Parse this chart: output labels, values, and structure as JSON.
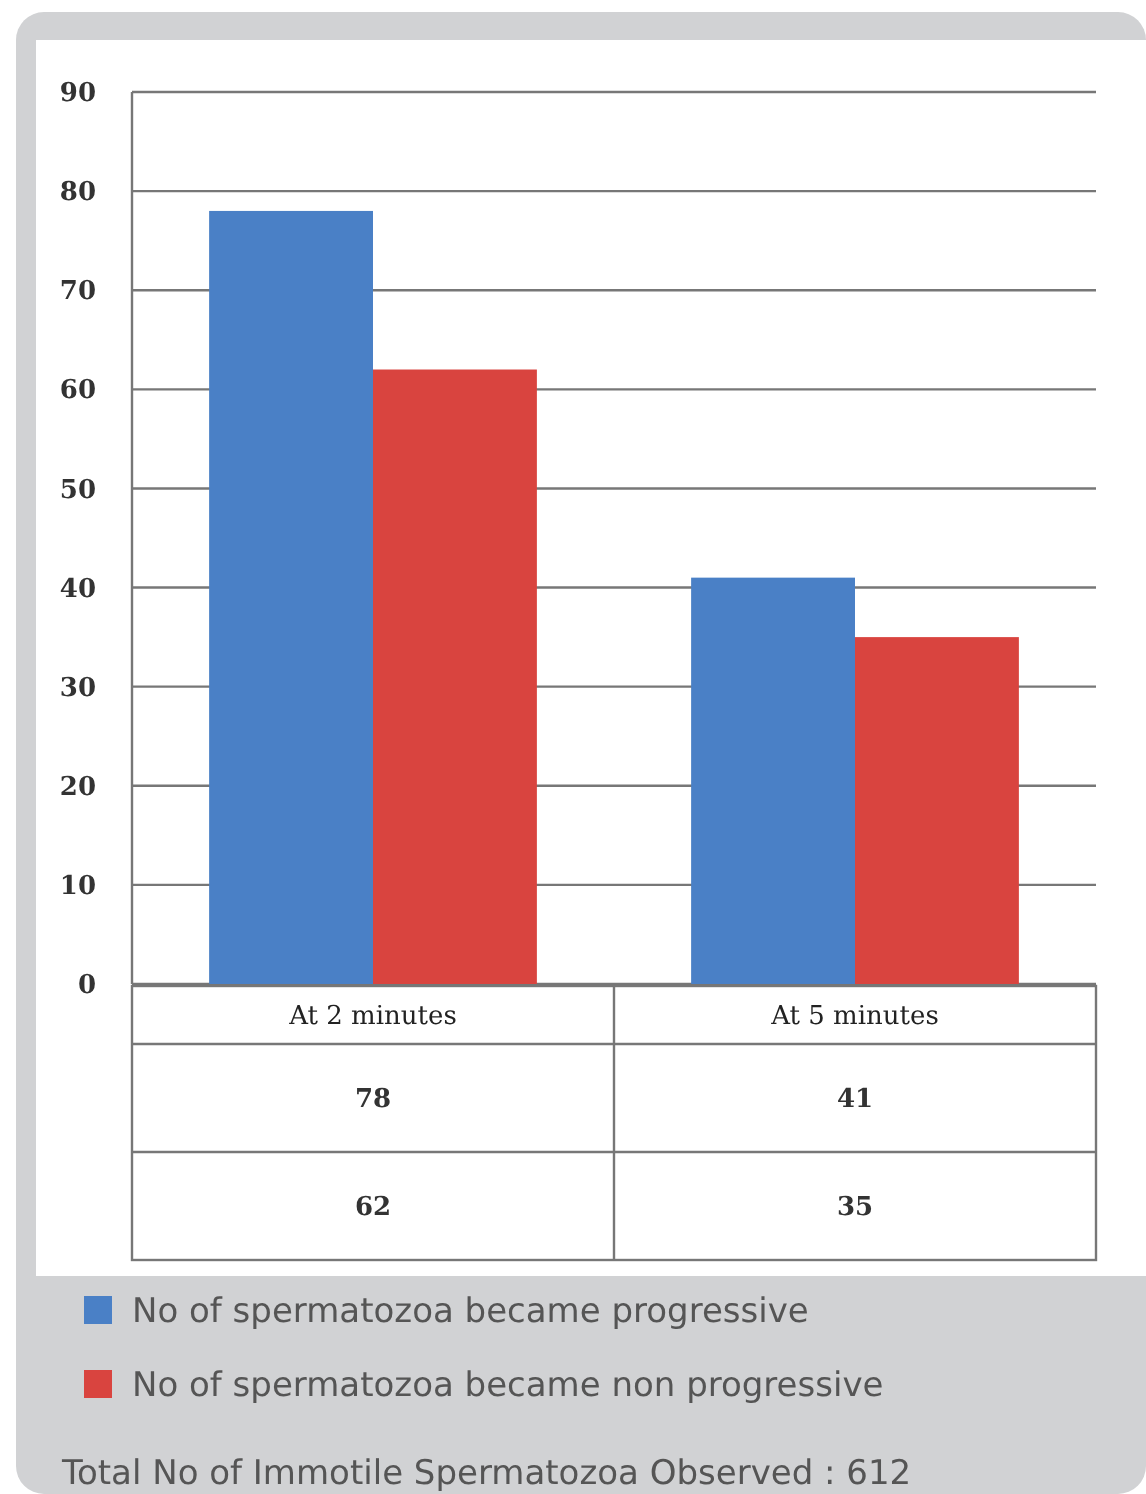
{
  "chart_data": {
    "type": "bar",
    "categories": [
      "At 2 minutes",
      "At 5 minutes"
    ],
    "series": [
      {
        "name": "No of spermatozoa became progressive",
        "color": "#4a80c6",
        "values": [
          78,
          41
        ]
      },
      {
        "name": "No of spermatozoa became non progressive",
        "color": "#d9443f",
        "values": [
          62,
          35
        ]
      }
    ],
    "ylim": [
      0,
      90
    ],
    "yticks": [
      0,
      10,
      20,
      30,
      40,
      50,
      60,
      70,
      80,
      90
    ],
    "grid": "y",
    "legend": "bottom",
    "data_labels": true,
    "annotations": [
      "Total No of Immotile Spermatozoa Observed : 612"
    ]
  }
}
